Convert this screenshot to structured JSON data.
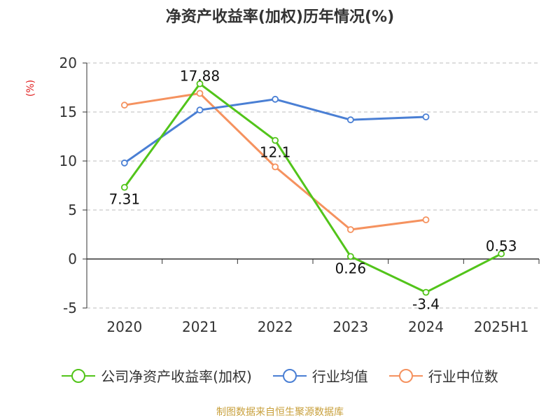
{
  "chart_data": {
    "type": "line",
    "title": "净资产收益率(加权)历年情况(%)",
    "ylabel": "(%)",
    "xlabel": "",
    "categories": [
      "2020",
      "2021",
      "2022",
      "2023",
      "2024",
      "2025H1"
    ],
    "ylim": [
      -5,
      20
    ],
    "yticks": [
      -5,
      0,
      5,
      10,
      15,
      20
    ],
    "grid": true,
    "legend_position": "bottom",
    "series": [
      {
        "name": "公司净资产收益率(加权)",
        "color": "#52c41a",
        "values": [
          7.31,
          17.88,
          12.1,
          0.26,
          -3.4,
          0.53
        ],
        "labels": [
          "7.31",
          "17.88",
          "12.1",
          "0.26",
          "-3.4",
          "0.53"
        ]
      },
      {
        "name": "行业均值",
        "color": "#4a7fd4",
        "values": [
          9.8,
          15.2,
          16.3,
          14.2,
          14.5,
          null
        ]
      },
      {
        "name": "行业中位数",
        "color": "#f5925f",
        "values": [
          15.7,
          16.9,
          9.4,
          3.0,
          4.0,
          null
        ]
      }
    ]
  },
  "source": "制图数据来自恒生聚源数据库"
}
